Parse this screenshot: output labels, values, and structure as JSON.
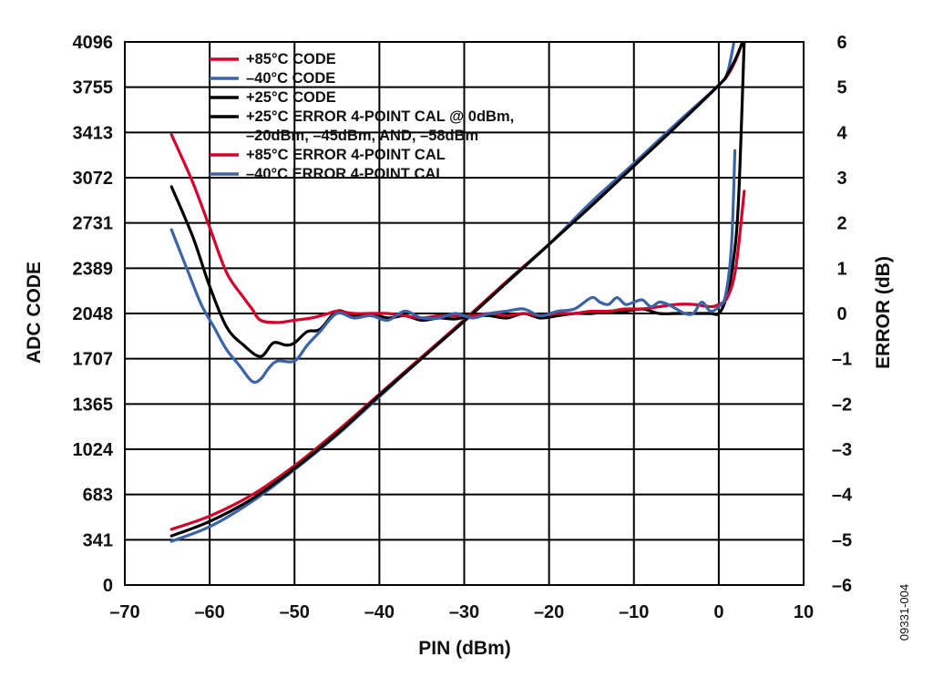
{
  "figure_id": "09331-004",
  "chart_data": {
    "type": "line",
    "xlabel": "PIN (dBm)",
    "ylabel": "ADC CODE",
    "y2label": "ERROR (dB)",
    "xlim": [
      -70,
      10
    ],
    "ylim": [
      0,
      4096
    ],
    "y2lim": [
      -6,
      6
    ],
    "x_ticks": [
      "–70",
      "–60",
      "–50",
      "–40",
      "–30",
      "–20",
      "–10",
      "0",
      "10"
    ],
    "y_ticks": [
      "0",
      "341",
      "683",
      "1024",
      "1365",
      "1707",
      "2048",
      "2389",
      "2731",
      "3072",
      "3413",
      "3755",
      "4096"
    ],
    "y2_ticks": [
      "–6",
      "–5",
      "–4",
      "–3",
      "–2",
      "–1",
      "0",
      "1",
      "2",
      "3",
      "4",
      "5",
      "6"
    ],
    "grid": true,
    "legend_position": "top-left",
    "legend": [
      {
        "lines": [
          "+85°C CODE"
        ],
        "color": "#d6002a"
      },
      {
        "lines": [
          "–40°C CODE"
        ],
        "color": "#3b63a7"
      },
      {
        "lines": [
          "+25°C CODE"
        ],
        "color": "#000000"
      },
      {
        "lines": [
          "+25°C ERROR 4-POINT CAL @ 0dBm,",
          "–20dBm, –45dBm, AND, –58dBm"
        ],
        "color": "#000000"
      },
      {
        "lines": [
          "+85°C ERROR 4-POINT CAL"
        ],
        "color": "#d6002a"
      },
      {
        "lines": [
          "–40°C ERROR 4-POINT CAL"
        ],
        "color": "#3b63a7"
      }
    ],
    "series": [
      {
        "name": "+85°C CODE",
        "axis": "left",
        "color": "#d6002a",
        "x": [
          -64.5,
          -60,
          -55,
          -50,
          -45,
          -40,
          -35,
          -30,
          -25,
          -20,
          -15,
          -10,
          -5,
          0,
          1,
          2,
          2.8
        ],
        "y": [
          420,
          520,
          680,
          900,
          1160,
          1440,
          1720,
          2000,
          2290,
          2570,
          2870,
          3170,
          3470,
          3770,
          3840,
          3960,
          4096
        ]
      },
      {
        "name": "–40°C CODE",
        "axis": "left",
        "color": "#3b63a7",
        "x": [
          -64.5,
          -60,
          -55,
          -50,
          -45,
          -40,
          -35,
          -30,
          -25,
          -20,
          -15,
          -10,
          -5,
          0,
          1,
          1.8
        ],
        "y": [
          330,
          440,
          630,
          870,
          1130,
          1420,
          1710,
          1990,
          2280,
          2570,
          2890,
          3180,
          3480,
          3770,
          3860,
          4096
        ]
      },
      {
        "name": "+25°C CODE",
        "axis": "left",
        "color": "#000000",
        "x": [
          -64.5,
          -60,
          -55,
          -50,
          -45,
          -40,
          -35,
          -30,
          -25,
          -20,
          -15,
          -10,
          -5,
          0,
          1,
          2,
          2.8
        ],
        "y": [
          370,
          480,
          650,
          880,
          1140,
          1430,
          1710,
          1990,
          2280,
          2570,
          2860,
          3160,
          3460,
          3770,
          3850,
          3970,
          4096
        ]
      },
      {
        "name": "+25°C ERROR 4-POINT CAL @ 0dBm, –20dBm, –45dBm, AND, –58dBm",
        "axis": "right",
        "color": "#000000",
        "x": [
          -64.5,
          -62,
          -60,
          -58,
          -56,
          -54,
          -52.5,
          -51,
          -50,
          -48.5,
          -47,
          -45,
          -43,
          -41,
          -39,
          -37,
          -35,
          -33,
          -31,
          -29,
          -27,
          -25,
          -23,
          -21,
          -19,
          -17,
          -15,
          -13,
          -11,
          -9,
          -7,
          -5,
          -3,
          -1,
          0,
          0.8,
          1.6,
          2.3,
          3
        ],
        "y": [
          2.8,
          1.7,
          0.6,
          -0.3,
          -0.7,
          -0.95,
          -0.65,
          -0.7,
          -0.65,
          -0.4,
          -0.35,
          0.05,
          -0.05,
          0.0,
          -0.1,
          -0.05,
          -0.15,
          -0.1,
          -0.12,
          -0.05,
          -0.05,
          -0.1,
          0.0,
          -0.1,
          -0.05,
          0.0,
          0.0,
          0.05,
          0.05,
          0.1,
          0.0,
          0.0,
          0.0,
          0.0,
          0.0,
          0.3,
          1.0,
          2.4,
          6.0
        ]
      },
      {
        "name": "+85°C ERROR 4-POINT CAL",
        "axis": "right",
        "color": "#d6002a",
        "x": [
          -64.5,
          -62,
          -60,
          -58,
          -56,
          -55,
          -54,
          -52,
          -50,
          -48,
          -46,
          -45,
          -43,
          -41,
          -39,
          -37,
          -35,
          -33,
          -31,
          -29,
          -27,
          -25,
          -23,
          -21,
          -19,
          -17,
          -15,
          -13,
          -11,
          -9,
          -7,
          -5,
          -3,
          -1,
          0,
          1,
          2,
          3
        ],
        "y": [
          3.95,
          2.9,
          1.9,
          0.9,
          0.35,
          0.1,
          -0.15,
          -0.2,
          -0.15,
          -0.1,
          0.0,
          0.05,
          0.0,
          0.0,
          0.0,
          -0.05,
          -0.1,
          -0.05,
          -0.05,
          -0.05,
          0.0,
          -0.05,
          0.0,
          -0.05,
          0.0,
          0.0,
          0.05,
          0.05,
          0.1,
          0.1,
          0.15,
          0.2,
          0.2,
          0.15,
          0.2,
          0.35,
          1.0,
          2.7
        ]
      },
      {
        "name": "–40°C ERROR 4-POINT CAL",
        "axis": "right",
        "color": "#3b63a7",
        "x": [
          -64.5,
          -62.5,
          -61,
          -59.5,
          -58,
          -56.5,
          -55,
          -54,
          -53,
          -52,
          -50,
          -48.5,
          -47,
          -45,
          -43,
          -41,
          -39,
          -37,
          -35,
          -33,
          -31,
          -29,
          -27,
          -25,
          -23,
          -21,
          -19,
          -17,
          -15,
          -14,
          -13,
          -12,
          -11,
          -10,
          -9,
          -8,
          -7,
          -6,
          -5,
          -4,
          -3,
          -2,
          -1,
          0,
          0.8,
          1.5,
          1.9
        ],
        "y": [
          1.85,
          0.9,
          0.2,
          -0.3,
          -0.8,
          -1.15,
          -1.5,
          -1.45,
          -1.2,
          -1.05,
          -1.05,
          -0.7,
          -0.4,
          0.0,
          -0.1,
          -0.05,
          -0.15,
          0.05,
          -0.1,
          -0.1,
          0.0,
          -0.1,
          0.0,
          0.05,
          0.1,
          -0.05,
          0.05,
          0.1,
          0.35,
          0.25,
          0.2,
          0.35,
          0.2,
          0.25,
          0.3,
          0.15,
          0.25,
          0.2,
          0.1,
          0.0,
          0.0,
          0.25,
          0.05,
          0.15,
          0.4,
          1.5,
          3.6
        ]
      }
    ]
  }
}
